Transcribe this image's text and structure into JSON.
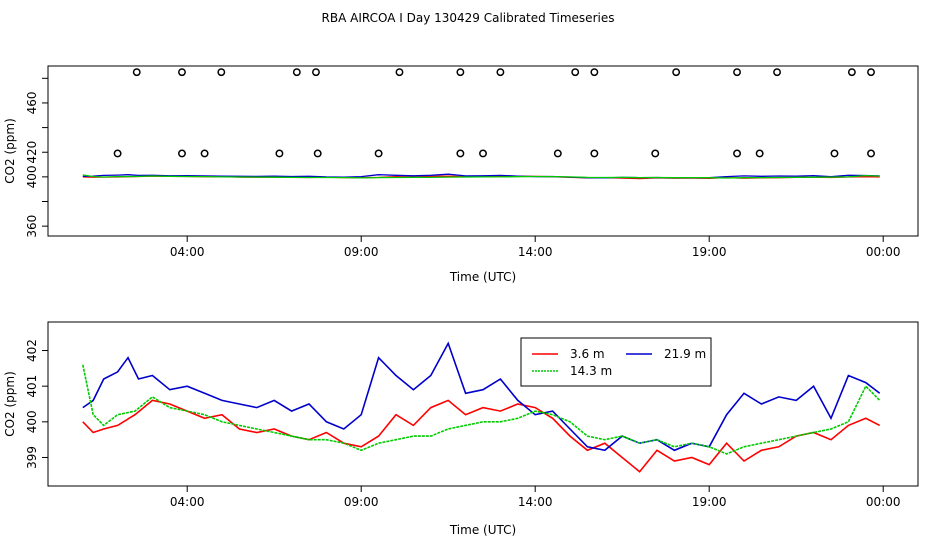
{
  "chart_data": [
    {
      "type": "scatter+line",
      "title": "RBA AIRCOA I  Day 130429  Calibrated Timeseries",
      "xlabel": "Time (UTC)",
      "ylabel": "CO2 (ppm)",
      "xlim": [
        0.0,
        25.0
      ],
      "ylim": [
        352,
        490
      ],
      "xticks": [
        4,
        9,
        14,
        19,
        24
      ],
      "xtick_labels": [
        "04:00",
        "09:00",
        "14:00",
        "19:00",
        "00:00"
      ],
      "yticks": [
        360,
        380,
        400,
        420,
        440,
        460,
        480
      ],
      "ytick_labels": [
        "360",
        "",
        "400",
        "420",
        "",
        "460",
        ""
      ],
      "circle_series": {
        "name": "calibration standards",
        "points": [
          [
            2.0,
            419
          ],
          [
            2.55,
            485
          ],
          [
            3.85,
            419
          ],
          [
            3.85,
            485
          ],
          [
            4.5,
            419
          ],
          [
            4.98,
            485
          ],
          [
            6.65,
            419
          ],
          [
            7.15,
            485
          ],
          [
            7.75,
            419
          ],
          [
            7.7,
            485
          ],
          [
            9.5,
            419
          ],
          [
            10.1,
            485
          ],
          [
            11.85,
            419
          ],
          [
            11.85,
            485
          ],
          [
            12.5,
            419
          ],
          [
            13.0,
            485
          ],
          [
            14.65,
            419
          ],
          [
            15.15,
            485
          ],
          [
            15.7,
            419
          ],
          [
            15.7,
            485
          ],
          [
            17.45,
            419
          ],
          [
            18.05,
            485
          ],
          [
            19.8,
            419
          ],
          [
            19.8,
            485
          ],
          [
            20.45,
            419
          ],
          [
            20.95,
            485
          ],
          [
            22.6,
            419
          ],
          [
            23.1,
            485
          ],
          [
            23.65,
            419
          ],
          [
            23.65,
            485
          ]
        ]
      }
    },
    {
      "type": "line",
      "title": "",
      "xlabel": "Time (UTC)",
      "ylabel": "CO2 (ppm)",
      "xlim": [
        0.0,
        25.0
      ],
      "ylim": [
        398.2,
        402.8
      ],
      "xticks": [
        4,
        9,
        14,
        19,
        24
      ],
      "xtick_labels": [
        "04:00",
        "09:00",
        "14:00",
        "19:00",
        "00:00"
      ],
      "yticks": [
        399,
        400,
        401,
        402
      ],
      "ytick_labels": [
        "399",
        "400",
        "401",
        "402"
      ],
      "series": [
        {
          "name": "3.6 m",
          "color": "#ff0000",
          "x": [
            1.0,
            1.3,
            1.6,
            2.0,
            2.5,
            3.0,
            3.5,
            4.0,
            4.5,
            5.0,
            5.5,
            6.0,
            6.5,
            7.0,
            7.5,
            8.0,
            8.5,
            9.0,
            9.5,
            10.0,
            10.5,
            11.0,
            11.5,
            12.0,
            12.5,
            13.0,
            13.5,
            14.0,
            14.5,
            15.0,
            15.5,
            16.0,
            16.5,
            17.0,
            17.5,
            18.0,
            18.5,
            19.0,
            19.5,
            20.0,
            20.5,
            21.0,
            21.5,
            22.0,
            22.5,
            23.0,
            23.5,
            23.9
          ],
          "y": [
            400.0,
            399.7,
            399.8,
            399.9,
            400.2,
            400.6,
            400.5,
            400.3,
            400.1,
            400.2,
            399.8,
            399.7,
            399.8,
            399.6,
            399.5,
            399.7,
            399.4,
            399.3,
            399.6,
            400.2,
            399.9,
            400.4,
            400.6,
            400.2,
            400.4,
            400.3,
            400.5,
            400.4,
            400.1,
            399.6,
            399.2,
            399.4,
            399.0,
            398.6,
            399.2,
            398.9,
            399.0,
            398.8,
            399.4,
            398.9,
            399.2,
            399.3,
            399.6,
            399.7,
            399.5,
            399.9,
            400.1,
            399.9
          ]
        },
        {
          "name": "14.3 m",
          "color": "#00cc00",
          "x": [
            1.0,
            1.3,
            1.6,
            2.0,
            2.5,
            3.0,
            3.5,
            4.0,
            4.5,
            5.0,
            5.5,
            6.0,
            6.5,
            7.0,
            7.5,
            8.0,
            8.5,
            9.0,
            9.5,
            10.0,
            10.5,
            11.0,
            11.5,
            12.0,
            12.5,
            13.0,
            13.5,
            14.0,
            14.5,
            15.0,
            15.5,
            16.0,
            16.5,
            17.0,
            17.5,
            18.0,
            18.5,
            19.0,
            19.5,
            20.0,
            20.5,
            21.0,
            21.5,
            22.0,
            22.5,
            23.0,
            23.5,
            23.9
          ],
          "y": [
            401.6,
            400.2,
            399.9,
            400.2,
            400.3,
            400.7,
            400.4,
            400.3,
            400.2,
            400.0,
            399.9,
            399.8,
            399.7,
            399.6,
            399.5,
            399.5,
            399.4,
            399.2,
            399.4,
            399.5,
            399.6,
            399.6,
            399.8,
            399.9,
            400.0,
            400.0,
            400.1,
            400.3,
            400.2,
            400.0,
            399.6,
            399.5,
            399.6,
            399.4,
            399.5,
            399.3,
            399.4,
            399.3,
            399.1,
            399.3,
            399.4,
            399.5,
            399.6,
            399.7,
            399.8,
            400.0,
            401.0,
            400.6
          ]
        },
        {
          "name": "21.9 m",
          "color": "#0000cc",
          "x": [
            1.0,
            1.3,
            1.6,
            2.0,
            2.3,
            2.6,
            3.0,
            3.5,
            4.0,
            4.5,
            5.0,
            5.5,
            6.0,
            6.5,
            7.0,
            7.5,
            8.0,
            8.5,
            9.0,
            9.5,
            10.0,
            10.5,
            11.0,
            11.5,
            12.0,
            12.5,
            13.0,
            13.5,
            14.0,
            14.5,
            15.0,
            15.5,
            16.0,
            16.5,
            17.0,
            17.5,
            18.0,
            18.5,
            19.0,
            19.5,
            20.0,
            20.5,
            21.0,
            21.5,
            22.0,
            22.5,
            23.0,
            23.5,
            23.9
          ],
          "y": [
            400.4,
            400.6,
            401.2,
            401.4,
            401.8,
            401.2,
            401.3,
            400.9,
            401.0,
            400.8,
            400.6,
            400.5,
            400.4,
            400.6,
            400.3,
            400.5,
            400.0,
            399.8,
            400.2,
            401.8,
            401.3,
            400.9,
            401.3,
            402.2,
            400.8,
            400.9,
            401.2,
            400.6,
            400.2,
            400.3,
            399.8,
            399.3,
            399.2,
            399.6,
            399.4,
            399.5,
            399.2,
            399.4,
            399.3,
            400.2,
            400.8,
            400.5,
            400.7,
            400.6,
            401.0,
            400.1,
            401.3,
            401.1,
            400.8
          ]
        }
      ],
      "legend": {
        "placement": "top-center",
        "entries": [
          "3.6 m",
          "21.9 m",
          "14.3 m"
        ]
      }
    }
  ]
}
